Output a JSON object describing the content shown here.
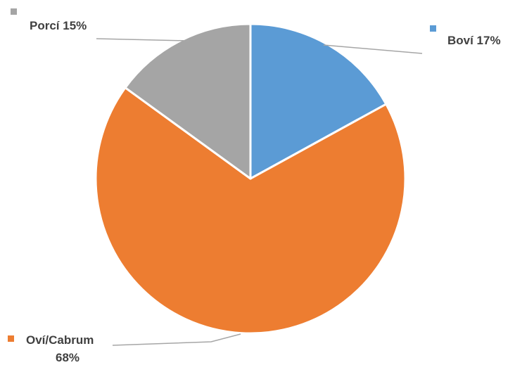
{
  "chart_data": {
    "type": "pie",
    "categories": [
      "Boví",
      "Oví/Cabrum",
      "Porcí"
    ],
    "values": [
      17,
      68,
      15
    ],
    "unit": "%",
    "colors": [
      "#5b9bd5",
      "#ed7d31",
      "#a5a5a5"
    ],
    "legend": "none",
    "data_labels": [
      {
        "lines": [
          "Boví 17%"
        ]
      },
      {
        "lines": [
          "Oví/Cabrum",
          "68%"
        ]
      },
      {
        "lines": [
          "Porcí 15%"
        ]
      }
    ]
  }
}
